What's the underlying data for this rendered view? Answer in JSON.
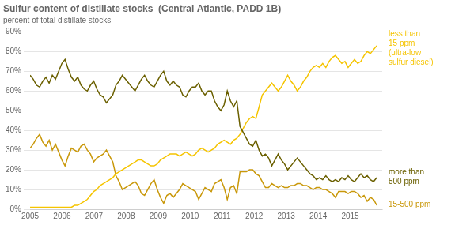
{
  "chart_data": {
    "type": "line",
    "title": "Sulfur content of distillate stocks  (Central Atlantic, PADD 1B)",
    "subtitle": "percent of total distillate stocks",
    "x": [
      2005,
      2005.0994,
      2005.1987,
      2005.2981,
      2005.3974,
      2005.4968,
      2005.5961,
      2005.6955,
      2005.7949,
      2005.8942,
      2005.9936,
      2006.0929,
      2006.1923,
      2006.2917,
      2006.391,
      2006.4904,
      2006.5897,
      2006.6891,
      2006.7884,
      2006.8878,
      2006.9872,
      2007.0865,
      2007.1859,
      2007.2852,
      2007.3846,
      2007.4839,
      2007.5833,
      2007.6827,
      2007.782,
      2007.8814,
      2007.9807,
      2008.0801,
      2008.1794,
      2008.2788,
      2008.3782,
      2008.4775,
      2008.5769,
      2008.6762,
      2008.7756,
      2008.875,
      2008.9743,
      2009.0737,
      2009.173,
      2009.2724,
      2009.3717,
      2009.4711,
      2009.5705,
      2009.6698,
      2009.7692,
      2009.8685,
      2009.9679,
      2010.0672,
      2010.1666,
      2010.266,
      2010.3653,
      2010.4647,
      2010.564,
      2010.6634,
      2010.7628,
      2010.8621,
      2010.9615,
      2011.0608,
      2011.1602,
      2011.2595,
      2011.3589,
      2011.4583,
      2011.5576,
      2011.657,
      2011.7563,
      2011.8557,
      2011.955,
      2012.0544,
      2012.1538,
      2012.2531,
      2012.3525,
      2012.4518,
      2012.5512,
      2012.6506,
      2012.7499,
      2012.8493,
      2012.9486,
      2013.048,
      2013.1473,
      2013.2467,
      2013.3461,
      2013.4454,
      2013.5448,
      2013.6441,
      2013.7435,
      2013.8428,
      2013.9422,
      2014.0416,
      2014.1409,
      2014.2403,
      2014.3396,
      2014.439,
      2014.5383,
      2014.6377,
      2014.7371,
      2014.8364,
      2014.9358,
      2015.0351,
      2015.1345,
      2015.2339,
      2015.3332,
      2015.4326,
      2015.5319,
      2015.6313,
      2015.7306,
      2015.83
    ],
    "series": [
      {
        "name": "more than\n500 ppm",
        "color": "#6b6000",
        "values": [
          68,
          66,
          63,
          62,
          65,
          67,
          64,
          68,
          66,
          70,
          74,
          76,
          71,
          67,
          65,
          67,
          63,
          61,
          60,
          63,
          65,
          61,
          58,
          57,
          54,
          56,
          58,
          63,
          65,
          68,
          66,
          64,
          62,
          60,
          63,
          66,
          68,
          65,
          63,
          62,
          65,
          68,
          70,
          65,
          63,
          65,
          63,
          62,
          58,
          57,
          60,
          62,
          62,
          64,
          60,
          58,
          60,
          60,
          55,
          52,
          50,
          53,
          60,
          55,
          52,
          55,
          42,
          39,
          36,
          33,
          32,
          35,
          30,
          27,
          28,
          26,
          22,
          25,
          28,
          25,
          23,
          20,
          22,
          24,
          26,
          24,
          22,
          20,
          18,
          17,
          15,
          16,
          15,
          17,
          15,
          14,
          15,
          14,
          16,
          15,
          17,
          15,
          14,
          16,
          18,
          16,
          17,
          15,
          14,
          16
        ]
      },
      {
        "name": "less than\n15 ppm\n(ultra-low\nsulfur diesel)",
        "color": "#f5c400",
        "values": [
          1,
          1,
          1,
          1,
          1,
          1,
          1,
          1,
          1,
          1,
          1,
          1,
          1,
          1,
          2,
          2,
          3,
          4,
          5,
          7,
          9,
          10,
          12,
          13,
          14,
          15,
          16,
          18,
          19,
          20,
          21,
          22,
          23,
          24,
          25,
          25,
          24,
          23,
          22,
          22,
          23,
          25,
          26,
          27,
          28,
          28,
          28,
          27,
          28,
          29,
          28,
          27,
          28,
          30,
          31,
          30,
          29,
          30,
          31,
          33,
          34,
          35,
          34,
          33,
          35,
          36,
          38,
          41,
          44,
          46,
          47,
          46,
          52,
          58,
          60,
          62,
          64,
          62,
          60,
          62,
          65,
          68,
          65,
          63,
          60,
          62,
          65,
          67,
          70,
          72,
          73,
          72,
          74,
          72,
          75,
          77,
          78,
          76,
          74,
          75,
          72,
          74,
          76,
          74,
          75,
          78,
          80,
          79,
          81,
          83
        ]
      },
      {
        "name": "15-500 ppm",
        "color": "#c9980a",
        "values": [
          31,
          33,
          36,
          38,
          34,
          32,
          35,
          30,
          33,
          29,
          25,
          22,
          27,
          31,
          30,
          29,
          32,
          33,
          30,
          28,
          24,
          26,
          27,
          28,
          30,
          27,
          24,
          17,
          14,
          10,
          11,
          12,
          13,
          14,
          12,
          8,
          7,
          10,
          13,
          15,
          10,
          6,
          3,
          7,
          8,
          6,
          8,
          10,
          13,
          12,
          11,
          10,
          9,
          5,
          8,
          11,
          10,
          9,
          13,
          14,
          15,
          11,
          5,
          11,
          12,
          8,
          19,
          19,
          19,
          20,
          20,
          18,
          17,
          14,
          11,
          11,
          13,
          12,
          11,
          12,
          11,
          11,
          12,
          12,
          13,
          13,
          12,
          12,
          11,
          10,
          11,
          11,
          10,
          10,
          9,
          8,
          6,
          9,
          9,
          9,
          8,
          9,
          9,
          8,
          6,
          7,
          4,
          6,
          5,
          2
        ]
      }
    ],
    "xlim": [
      2005,
      2016
    ],
    "xticks": [
      2005,
      2006,
      2007,
      2008,
      2009,
      2010,
      2011,
      2012,
      2013,
      2014,
      2015
    ],
    "ylim": [
      0,
      90
    ],
    "yticks": [
      {
        "value": 0,
        "label": "0%"
      },
      {
        "value": 10,
        "label": "10%"
      },
      {
        "value": 20,
        "label": "20%"
      },
      {
        "value": 30,
        "label": "30%"
      },
      {
        "value": 40,
        "label": "40%"
      },
      {
        "value": 50,
        "label": "50%"
      },
      {
        "value": 60,
        "label": "60%"
      },
      {
        "value": 70,
        "label": "70%"
      },
      {
        "value": 80,
        "label": "80%"
      },
      {
        "value": 90,
        "label": "90%"
      }
    ],
    "grid": "y"
  }
}
